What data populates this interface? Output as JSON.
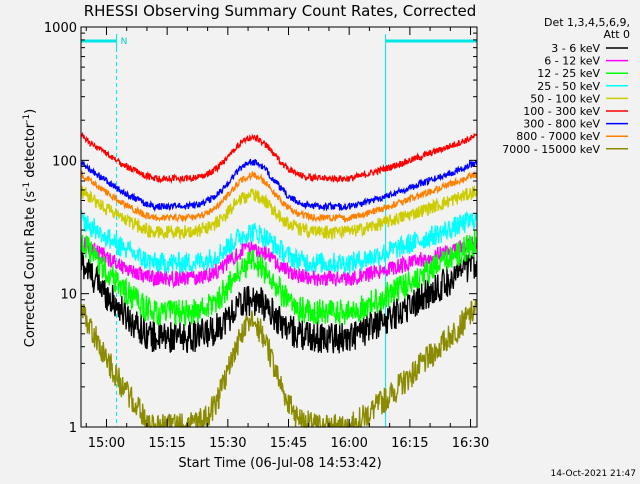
{
  "chart_data": {
    "type": "line",
    "title": "RHESSI Observing Summary Count Rates, Corrected",
    "xlabel": "Start Time (06-Jul-08 14:53:42)",
    "ylabel_main": "Corrected Count Rate (s",
    "ylabel_sup1": "-1",
    "ylabel_mid": " detector",
    "ylabel_sup2": "-1",
    "ylabel_end": ")",
    "y_scale": "log",
    "ylim": [
      1,
      1000
    ],
    "xlim_minutes": [
      -6.3,
      91.6
    ],
    "x_tick_labels": [
      "15:00",
      "15:15",
      "15:30",
      "15:45",
      "16:00",
      "16:15",
      "16:30"
    ],
    "y_tick_labels": [
      "1",
      "10",
      "100",
      "1000"
    ],
    "legend_header": [
      "Det 1,3,4,5,6,9,",
      "Att 0"
    ],
    "legend_position": "right",
    "footer_date": "14-Oct-2021 21:47",
    "night_marker": "N",
    "night_intervals_minutes": [
      [
        -6.3,
        2.5
      ],
      [
        69.0,
        91.6
      ]
    ],
    "series": [
      {
        "name": "3 - 6 keV",
        "color": "#000000",
        "base": 4.7,
        "peak": 9.0,
        "late": 17,
        "noise": 0.12
      },
      {
        "name": "6 - 12 keV",
        "color": "#ff00ff",
        "base": 13,
        "peak": 22,
        "late": 24,
        "noise": 0.06
      },
      {
        "name": "12 - 25 keV",
        "color": "#00ff00",
        "base": 7.2,
        "peak": 17,
        "late": 24,
        "noise": 0.1
      },
      {
        "name": "25 - 50 keV",
        "color": "#00ffff",
        "base": 17,
        "peak": 29,
        "late": 36,
        "noise": 0.08
      },
      {
        "name": "50 - 100 keV",
        "color": "#cccc00",
        "base": 29,
        "peak": 55,
        "late": 58,
        "noise": 0.05
      },
      {
        "name": "100 - 300 keV",
        "color": "#ff0000",
        "base": 73,
        "peak": 148,
        "late": 150,
        "noise": 0.025
      },
      {
        "name": "300 - 800 keV",
        "color": "#0000ff",
        "base": 45,
        "peak": 97,
        "late": 95,
        "noise": 0.025
      },
      {
        "name": "800 - 7000 keV",
        "color": "#ff8000",
        "base": 37,
        "peak": 77,
        "late": 78,
        "noise": 0.025
      },
      {
        "name": "7000 - 15000 keV",
        "color": "#8b8b00",
        "base": 1.0,
        "peak": 6.0,
        "late": 7.5,
        "noise": 0.1
      }
    ]
  }
}
